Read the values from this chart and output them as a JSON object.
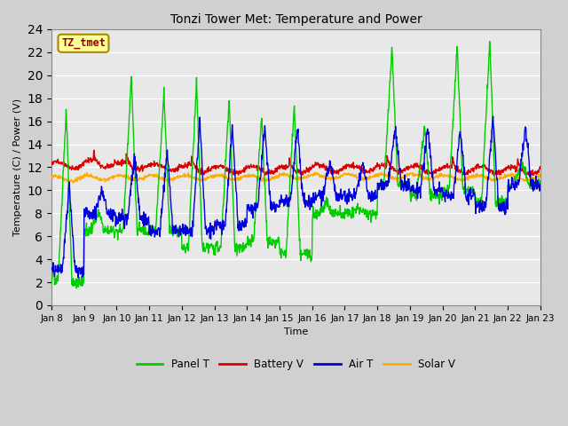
{
  "title": "Tonzi Tower Met: Temperature and Power",
  "xlabel": "Time",
  "ylabel": "Temperature (C) / Power (V)",
  "ylim": [
    0,
    24
  ],
  "yticks": [
    0,
    2,
    4,
    6,
    8,
    10,
    12,
    14,
    16,
    18,
    20,
    22,
    24
  ],
  "xtick_labels": [
    "Jan 8",
    "Jan 9",
    "Jan 10",
    "Jan 11",
    "Jan 12",
    "Jan 13",
    "Jan 14",
    "Jan 15",
    "Jan 16",
    "Jan 17",
    "Jan 18",
    "Jan 19",
    "Jan 20",
    "Jan 21",
    "Jan 22",
    "Jan 23"
  ],
  "n_days": 15,
  "pts_per_day": 96,
  "fig_bg": "#d0d0d0",
  "ax_bg": "#e8e8e8",
  "grid_color": "#ffffff",
  "colors": {
    "panel_t": "#00cc00",
    "battery_v": "#dd0000",
    "air_t": "#0000dd",
    "solar_v": "#ffaa00"
  },
  "legend_labels": [
    "Panel T",
    "Battery V",
    "Air T",
    "Solar V"
  ],
  "watermark_text": "TZ_tmet",
  "watermark_color": "#990000",
  "watermark_bg": "#ffff99",
  "watermark_border": "#aa8800",
  "title_fontsize": 10,
  "axis_fontsize": 8,
  "tick_fontsize": 7.5
}
